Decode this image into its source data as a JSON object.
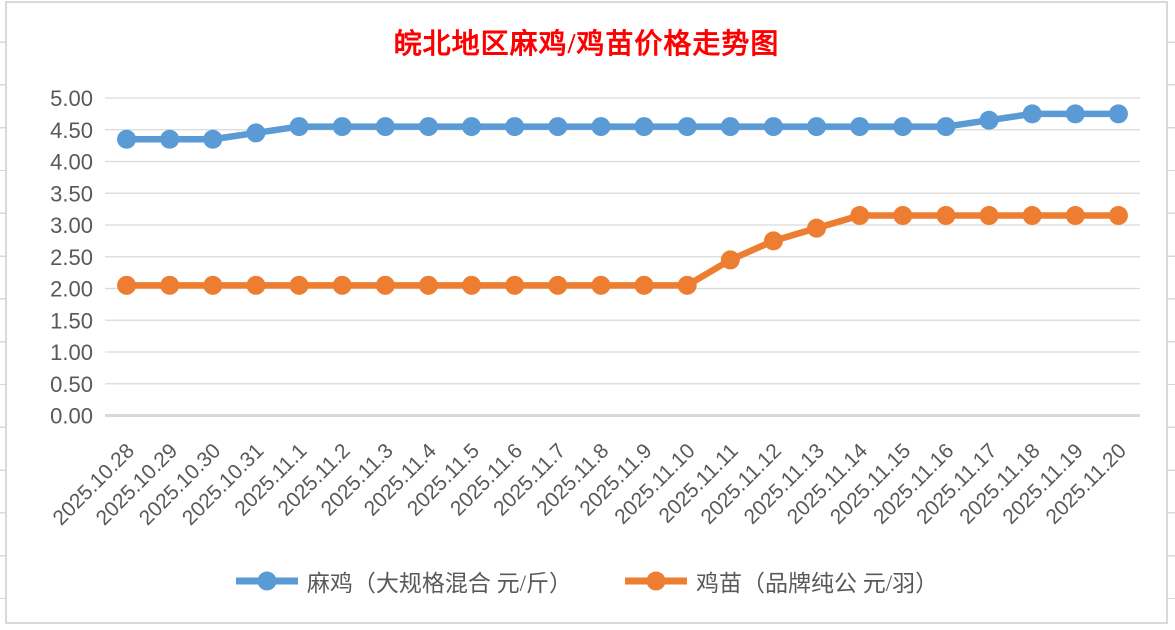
{
  "spreadsheet": {
    "gridline_color": "#d9d9d9",
    "background": "#ffffff"
  },
  "chart_data": {
    "type": "line",
    "title": "皖北地区麻鸡/鸡苗价格走势图",
    "title_color": "#ff0000",
    "background": "#ffffff",
    "border_color": "#d9d9d9",
    "gridline_color": "#d9d9d9",
    "grid": "horizontal-only",
    "legend_position": "bottom",
    "x_axis": {
      "label_rotation": -45,
      "label_color": "#595959"
    },
    "y_axis": {
      "min": 0.0,
      "max": 5.0,
      "step": 0.5,
      "label_color": "#595959",
      "tick_labels": [
        "0.00",
        "0.50",
        "1.00",
        "1.50",
        "2.00",
        "2.50",
        "3.00",
        "3.50",
        "4.00",
        "4.50",
        "5.00"
      ]
    },
    "categories": [
      "2025.10.28",
      "2025.10.29",
      "2025.10.30",
      "2025.10.31",
      "2025.11.1",
      "2025.11.2",
      "2025.11.3",
      "2025.11.4",
      "2025.11.5",
      "2025.11.6",
      "2025.11.7",
      "2025.11.8",
      "2025.11.9",
      "2025.11.10",
      "2025.11.11",
      "2025.11.12",
      "2025.11.13",
      "2025.11.14",
      "2025.11.15",
      "2025.11.16",
      "2025.11.17",
      "2025.11.18",
      "2025.11.19",
      "2025.11.20"
    ],
    "series": [
      {
        "name": "麻鸡（大规格混合 元/斤）",
        "color": "#5b9bd5",
        "marker": "circle",
        "values": [
          4.35,
          4.35,
          4.35,
          4.45,
          4.55,
          4.55,
          4.55,
          4.55,
          4.55,
          4.55,
          4.55,
          4.55,
          4.55,
          4.55,
          4.55,
          4.55,
          4.55,
          4.55,
          4.55,
          4.55,
          4.65,
          4.75,
          4.75,
          4.75
        ]
      },
      {
        "name": "鸡苗（品牌纯公 元/羽）",
        "color": "#ed7d31",
        "marker": "circle",
        "values": [
          2.05,
          2.05,
          2.05,
          2.05,
          2.05,
          2.05,
          2.05,
          2.05,
          2.05,
          2.05,
          2.05,
          2.05,
          2.05,
          2.05,
          2.45,
          2.75,
          2.95,
          3.15,
          3.15,
          3.15,
          3.15,
          3.15,
          3.15,
          3.15
        ]
      }
    ]
  }
}
